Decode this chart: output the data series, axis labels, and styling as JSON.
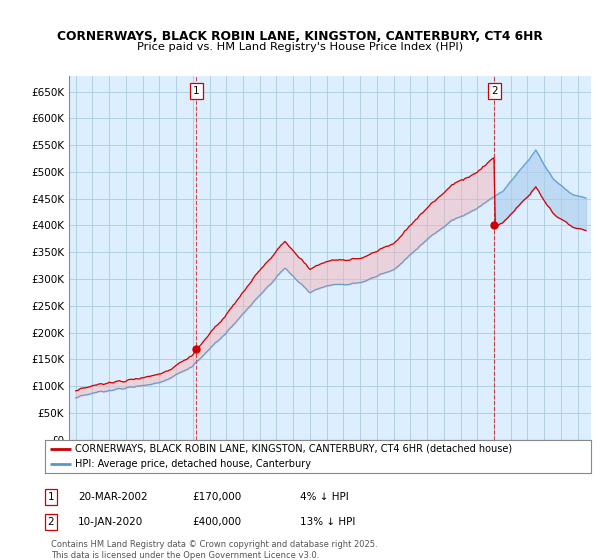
{
  "title_line1": "CORNERWAYS, BLACK ROBIN LANE, KINGSTON, CANTERBURY, CT4 6HR",
  "title_line2": "Price paid vs. HM Land Registry's House Price Index (HPI)",
  "background_color": "#ffffff",
  "plot_bg_color": "#ddeeff",
  "grid_color": "#aaccdd",
  "hpi_color": "#5599cc",
  "price_color": "#cc0000",
  "vline_color": "#cc0000",
  "fill_color": "#aaccee",
  "ylim": [
    0,
    680000
  ],
  "yticks": [
    0,
    50000,
    100000,
    150000,
    200000,
    250000,
    300000,
    350000,
    400000,
    450000,
    500000,
    550000,
    600000,
    650000
  ],
  "ytick_labels": [
    "£0",
    "£50K",
    "£100K",
    "£150K",
    "£200K",
    "£250K",
    "£300K",
    "£350K",
    "£400K",
    "£450K",
    "£500K",
    "£550K",
    "£600K",
    "£650K"
  ],
  "sale1_year": 2002.22,
  "sale1_price": 170000,
  "sale2_year": 2020.03,
  "sale2_price": 400000,
  "legend_line1": "CORNERWAYS, BLACK ROBIN LANE, KINGSTON, CANTERBURY, CT4 6HR (detached house)",
  "legend_line2": "HPI: Average price, detached house, Canterbury",
  "footer": "Contains HM Land Registry data © Crown copyright and database right 2025.\nThis data is licensed under the Open Government Licence v3.0."
}
